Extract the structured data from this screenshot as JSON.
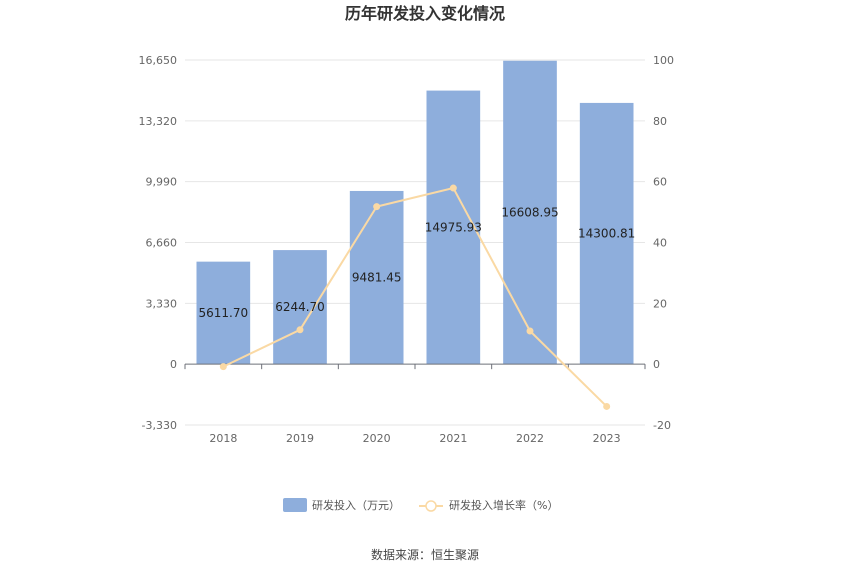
{
  "chart_data": {
    "type": "bar",
    "title": "历年研发投入变化情况",
    "categories": [
      "2018",
      "2019",
      "2020",
      "2021",
      "2022",
      "2023"
    ],
    "series": [
      {
        "name": "研发投入（万元）",
        "type": "bar",
        "axis": "left",
        "values": [
          5611.7,
          6244.7,
          9481.45,
          14975.93,
          16608.95,
          14300.81
        ],
        "labels": [
          "5611.70",
          "6244.70",
          "9481.45",
          "14975.93",
          "16608.95",
          "14300.81"
        ]
      },
      {
        "name": "研发投入增长率（%）",
        "type": "line",
        "axis": "right",
        "values": [
          -0.8,
          11.3,
          51.8,
          57.9,
          10.9,
          -13.9
        ]
      }
    ],
    "y_left": {
      "ylim": [
        -3330,
        16650
      ],
      "ticks": [
        -3330,
        0,
        3330,
        6660,
        9990,
        13320,
        16650
      ],
      "tick_labels": [
        "-3,330",
        "0",
        "3,330",
        "6,660",
        "9,990",
        "13,320",
        "16,650"
      ]
    },
    "y_right": {
      "ylim": [
        -20,
        100
      ],
      "ticks": [
        -20,
        0,
        20,
        40,
        60,
        80,
        100
      ],
      "tick_labels": [
        "-20",
        "0",
        "20",
        "40",
        "60",
        "80",
        "100"
      ]
    },
    "grid": true,
    "legend": "bottom-center",
    "colors": {
      "bar": "#8eaedc",
      "line": "#fad9a4",
      "grid": "#e6e6e6"
    }
  },
  "source": "数据来源：恒生聚源"
}
